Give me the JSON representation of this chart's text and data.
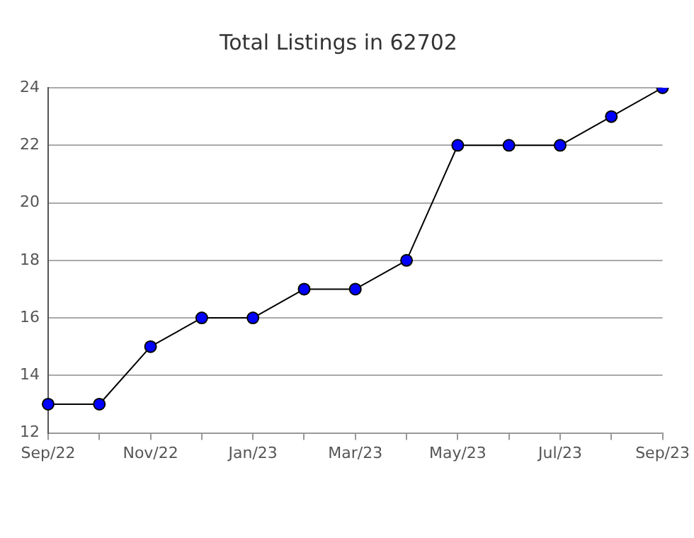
{
  "chart_data": {
    "type": "line",
    "title": "Total Listings in 62702",
    "categories": [
      "Sep/22",
      null,
      "Nov/22",
      null,
      "Jan/23",
      null,
      "Mar/23",
      null,
      "May/23",
      null,
      "Jul/23",
      null,
      "Sep/23"
    ],
    "series": [
      {
        "color": "#0000ff",
        "values": [
          13,
          13,
          15,
          16,
          16,
          17,
          17,
          18,
          22,
          22,
          22,
          23,
          24
        ]
      }
    ],
    "ylim": [
      12,
      24
    ],
    "yticks": [
      12,
      14,
      16,
      18,
      20,
      22,
      24
    ],
    "grid": "y",
    "marker": "circle",
    "line_style": "solid",
    "legend": false
  }
}
